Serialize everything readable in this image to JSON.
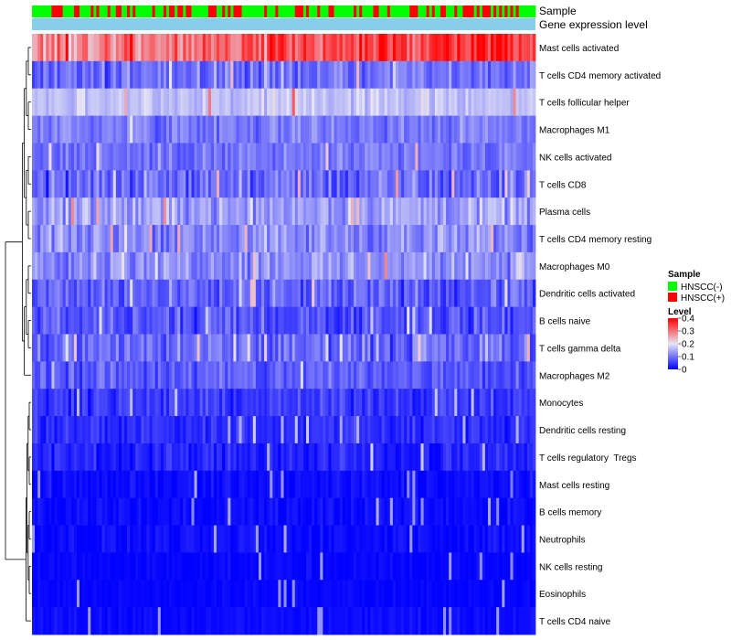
{
  "chart_data": {
    "type": "heatmap",
    "title": "",
    "n_samples": 180,
    "annotation_tracks": [
      {
        "name": "Sample",
        "role": "sample_group"
      },
      {
        "name": "Gene expression level",
        "role": "expression_level"
      }
    ],
    "rows": [
      {
        "label": "Mast cells activated",
        "level": 0.3,
        "spread": 0.1
      },
      {
        "label": "T cells CD4 memory activated",
        "level": 0.1,
        "spread": 0.08
      },
      {
        "label": "T cells follicular helper",
        "level": 0.17,
        "spread": 0.05
      },
      {
        "label": "Macrophages M1",
        "level": 0.11,
        "spread": 0.06
      },
      {
        "label": "NK cells activated",
        "level": 0.1,
        "spread": 0.06
      },
      {
        "label": "T cells CD8",
        "level": 0.09,
        "spread": 0.09
      },
      {
        "label": "Plasma cells",
        "level": 0.14,
        "spread": 0.08
      },
      {
        "label": "T cells CD4 memory resting",
        "level": 0.12,
        "spread": 0.08
      },
      {
        "label": "Macrophages M0",
        "level": 0.13,
        "spread": 0.08
      },
      {
        "label": "Dendritic cells activated",
        "level": 0.08,
        "spread": 0.08
      },
      {
        "label": "B cells naive",
        "level": 0.07,
        "spread": 0.07
      },
      {
        "label": "T cells gamma delta",
        "level": 0.09,
        "spread": 0.08
      },
      {
        "label": "Macrophages M2",
        "level": 0.08,
        "spread": 0.07
      },
      {
        "label": "Monocytes",
        "level": 0.05,
        "spread": 0.05
      },
      {
        "label": "Dendritic cells resting",
        "level": 0.04,
        "spread": 0.05
      },
      {
        "label": "T cells regulatory  Tregs",
        "level": 0.03,
        "spread": 0.05
      },
      {
        "label": "Mast cells resting",
        "level": 0.01,
        "spread": 0.03
      },
      {
        "label": "B cells memory",
        "level": 0.01,
        "spread": 0.03
      },
      {
        "label": "Neutrophils",
        "level": 0.01,
        "spread": 0.03
      },
      {
        "label": "NK cells resting",
        "level": 0.005,
        "spread": 0.02
      },
      {
        "label": "Eosinophils",
        "level": 0.005,
        "spread": 0.015
      },
      {
        "label": "T cells CD4 naive",
        "level": 0.01,
        "spread": 0.02
      }
    ],
    "legend": {
      "sample_title": "Sample",
      "sample_entries": [
        {
          "label": "HNSCC(-)",
          "color": "#00ff00"
        },
        {
          "label": "HNSCC(+)",
          "color": "#ff0000"
        }
      ],
      "level_title": "Level",
      "level_ticks": [
        "0.4",
        "0.3",
        "0.2",
        "0.1",
        "0"
      ],
      "level_tick_values": [
        0.4,
        0.3,
        0.2,
        0.1,
        0
      ],
      "level_range": [
        0,
        0.4
      ]
    },
    "colors": {
      "low": "#0000ff",
      "mid": "#e0e0f0",
      "high": "#ff0000",
      "gene_expression_track": "#87ceeb",
      "negative": "#00ff00",
      "positive": "#ff0000"
    },
    "positive_fraction": 0.33
  }
}
